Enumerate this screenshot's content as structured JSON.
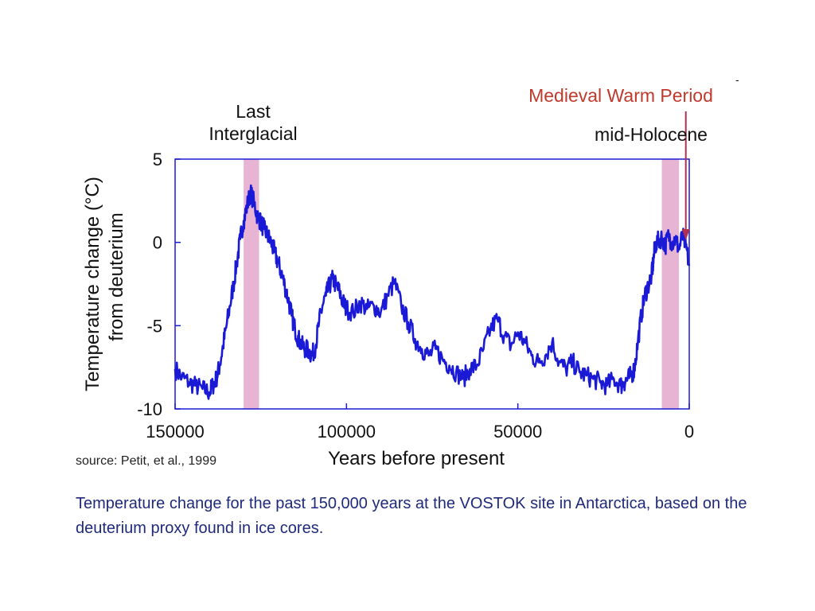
{
  "caption": "Temperature change for the past 150,000 years at the VOSTOK site in Antarctica, based on the deuterium proxy found in ice cores.",
  "stray_mark": "-",
  "chart_data": {
    "type": "line",
    "title": "",
    "xlabel": "Years before present",
    "ylabel_line1": "Temperature change (°C)",
    "ylabel_line2": "from deuterium",
    "xlim": [
      150000,
      0
    ],
    "ylim": [
      -10,
      5
    ],
    "x_ticks": [
      {
        "value": 150000,
        "label": "150000"
      },
      {
        "value": 100000,
        "label": "100000"
      },
      {
        "value": 50000,
        "label": "50000"
      },
      {
        "value": 0,
        "label": "0"
      }
    ],
    "y_ticks": [
      {
        "value": 5,
        "label": "5"
      },
      {
        "value": 0,
        "label": "0"
      },
      {
        "value": -5,
        "label": "-5"
      },
      {
        "value": -10,
        "label": "-10"
      }
    ],
    "grid": false,
    "legend": "none",
    "line_color": "#1a1ad6",
    "highlight_color": "#e8b4d4",
    "source": "source: Petit, et al., 1999",
    "highlight_bands": [
      {
        "label_line1": "Last",
        "label_line2": "Interglacial",
        "x_start": 130000,
        "x_end": 125500
      },
      {
        "label_line1": "mid-Holocene",
        "label_line2": "",
        "x_start": 8000,
        "x_end": 3000
      }
    ],
    "marker": {
      "label": "Medieval Warm Period",
      "x": 1000,
      "color": "#b03050"
    },
    "series": [
      {
        "x": [
          150000,
          148000,
          146000,
          144000,
          142000,
          140000,
          139000,
          138000,
          137000,
          136000,
          135000,
          134000,
          133000,
          132000,
          131000,
          130000,
          129000,
          128000,
          127000,
          126000,
          125000,
          124000,
          123000,
          122000,
          121000,
          120000,
          119000,
          118000,
          117000,
          116000,
          115000,
          114000,
          113000,
          112000,
          111000,
          110000,
          109000,
          108000,
          107000,
          106000,
          105000,
          104000,
          103000,
          102000,
          101000,
          100000,
          98000,
          96000,
          94000,
          92000,
          90000,
          88000,
          86000,
          84000,
          82000,
          80000,
          78000,
          76000,
          74000,
          72000,
          70000,
          68000,
          66000,
          64000,
          62000,
          60000,
          58000,
          56000,
          54000,
          52000,
          50000,
          48000,
          46000,
          44000,
          42000,
          40000,
          38000,
          36000,
          34000,
          32000,
          30000,
          28000,
          26000,
          24000,
          22000,
          20000,
          19000,
          18000,
          17000,
          16000,
          15000,
          14000,
          13000,
          12000,
          11000,
          10500,
          10000,
          9000,
          8000,
          7000,
          6000,
          5000,
          4000,
          3000,
          2000,
          1000,
          0
        ],
        "y": [
          -7.6,
          -8.1,
          -8.4,
          -8.6,
          -8.8,
          -9.0,
          -8.6,
          -8.2,
          -7.4,
          -6.2,
          -5.0,
          -3.8,
          -2.6,
          -1.2,
          0.2,
          1.3,
          2.2,
          3.0,
          2.4,
          1.6,
          1.2,
          0.8,
          0.4,
          0.0,
          -0.6,
          -1.2,
          -1.8,
          -2.6,
          -3.4,
          -4.4,
          -5.2,
          -5.8,
          -6.2,
          -6.4,
          -6.5,
          -6.8,
          -6.2,
          -4.8,
          -3.8,
          -3.2,
          -2.6,
          -2.2,
          -2.6,
          -3.0,
          -3.6,
          -4.0,
          -4.2,
          -3.6,
          -4.0,
          -3.8,
          -4.2,
          -3.2,
          -2.4,
          -3.8,
          -4.8,
          -5.8,
          -6.4,
          -6.8,
          -6.4,
          -7.0,
          -7.4,
          -7.8,
          -8.2,
          -7.6,
          -7.4,
          -6.4,
          -5.2,
          -4.6,
          -5.6,
          -6.2,
          -5.4,
          -6.0,
          -6.8,
          -7.2,
          -6.8,
          -6.0,
          -7.2,
          -7.6,
          -7.2,
          -7.8,
          -8.0,
          -8.2,
          -8.4,
          -8.6,
          -8.2,
          -8.6,
          -8.4,
          -8.2,
          -8.0,
          -7.6,
          -6.0,
          -4.4,
          -3.2,
          -2.6,
          -2.0,
          -1.2,
          -0.2,
          0.1,
          0.3,
          -0.2,
          0.4,
          0.0,
          0.2,
          -0.4,
          0.4,
          -0.2,
          -1.4
        ]
      }
    ]
  }
}
